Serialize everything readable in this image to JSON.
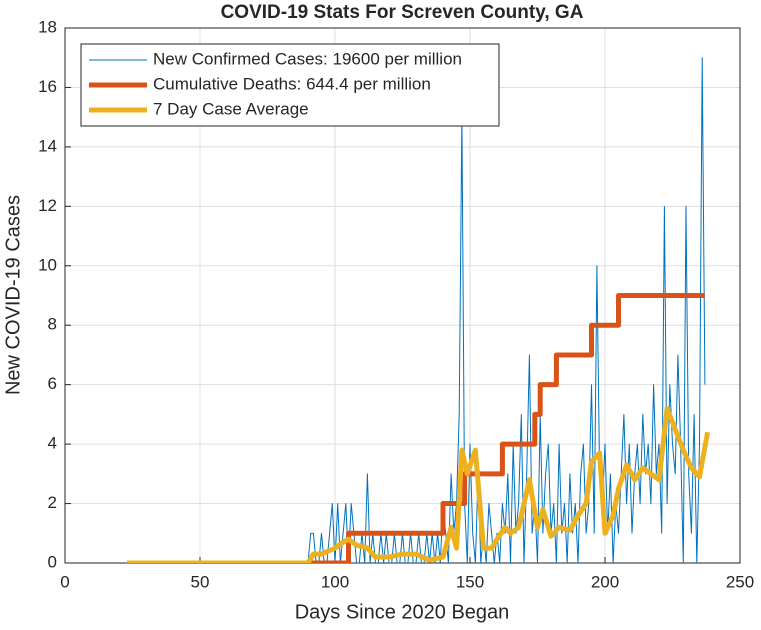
{
  "chart_data": {
    "type": "line",
    "title": "COVID-19 Stats For Screven County, GA",
    "x_label": "Days Since 2020 Began",
    "y_label": "New COVID-19 Cases",
    "xlim": [
      0,
      250
    ],
    "xticks": [
      0,
      50,
      100,
      150,
      200,
      250
    ],
    "ylim": [
      0,
      18
    ],
    "yticks": [
      0,
      2,
      4,
      6,
      8,
      10,
      12,
      14,
      16,
      18
    ],
    "grid": true,
    "legend": "upper left",
    "series": [
      {
        "name": "New Confirmed Cases: 19600 per million",
        "color": "#0072bd",
        "width": 1,
        "x": [
          23,
          90,
          91,
          92,
          93,
          94,
          95,
          96,
          97,
          98,
          99,
          100,
          101,
          102,
          103,
          104,
          105,
          106,
          107,
          108,
          109,
          110,
          111,
          112,
          113,
          114,
          115,
          116,
          117,
          118,
          119,
          120,
          121,
          122,
          123,
          124,
          125,
          126,
          127,
          128,
          129,
          130,
          131,
          132,
          133,
          134,
          135,
          136,
          137,
          138,
          139,
          140,
          141,
          142,
          143,
          144,
          145,
          146,
          147,
          148,
          149,
          150,
          151,
          152,
          153,
          154,
          155,
          156,
          157,
          158,
          159,
          160,
          161,
          162,
          163,
          164,
          165,
          166,
          167,
          168,
          169,
          170,
          171,
          172,
          173,
          174,
          175,
          176,
          177,
          178,
          179,
          180,
          181,
          182,
          183,
          184,
          185,
          186,
          187,
          188,
          189,
          190,
          191,
          192,
          193,
          194,
          195,
          196,
          197,
          198,
          199,
          200,
          201,
          202,
          203,
          204,
          205,
          206,
          207,
          208,
          209,
          210,
          211,
          212,
          213,
          214,
          215,
          216,
          217,
          218,
          219,
          220,
          221,
          222,
          223,
          224,
          225,
          226,
          227,
          228,
          229,
          230,
          231,
          232,
          233,
          234,
          235,
          236,
          237
        ],
        "values": [
          0,
          0,
          1,
          1,
          0,
          0,
          1,
          0,
          0,
          1,
          2,
          0,
          2,
          0,
          1,
          2,
          0,
          2,
          1,
          0,
          0,
          1,
          0,
          3,
          0,
          1,
          0,
          0,
          1,
          0,
          1,
          0,
          0,
          1,
          0,
          0,
          1,
          0,
          0,
          1,
          0,
          0,
          1,
          0,
          0,
          1,
          0,
          1,
          0,
          1,
          0,
          2,
          1,
          0,
          3,
          1,
          2,
          5,
          15,
          2,
          0,
          4,
          1,
          0,
          3,
          0,
          1,
          0,
          2,
          1,
          0,
          1,
          0,
          2,
          1,
          3,
          0,
          4,
          1,
          2,
          5,
          0,
          3,
          7,
          1,
          2,
          0,
          5,
          1,
          3,
          4,
          1,
          2,
          0,
          4,
          1,
          2,
          0,
          3,
          1,
          2,
          0,
          3,
          4,
          1,
          2,
          6,
          1,
          10,
          3,
          2,
          4,
          1,
          3,
          0,
          2,
          1,
          3,
          5,
          2,
          4,
          1,
          3,
          4,
          2,
          5,
          3,
          4,
          2,
          6,
          3,
          4,
          1,
          12,
          2,
          6,
          4,
          3,
          7,
          4,
          0,
          12,
          3,
          1,
          5,
          0,
          4,
          17,
          6
        ]
      },
      {
        "name": "Cumulative Deaths: 644.4 per million",
        "color": "#d95319",
        "width": 5,
        "x": [
          23,
          105,
          105,
          140,
          140,
          148,
          148,
          162,
          162,
          174,
          174,
          176,
          176,
          182,
          182,
          195,
          195,
          205,
          205,
          237
        ],
        "values": [
          0,
          0,
          1,
          1,
          2,
          2,
          3,
          3,
          4,
          4,
          5,
          5,
          6,
          6,
          7,
          7,
          8,
          8,
          9,
          9
        ]
      },
      {
        "name": "7 Day Case Average",
        "color": "#edb120",
        "width": 5,
        "x": [
          23,
          90,
          92,
          95,
          100,
          103,
          105,
          108,
          112,
          115,
          120,
          125,
          130,
          135,
          140,
          143,
          145,
          147,
          149,
          152,
          155,
          158,
          160,
          163,
          165,
          168,
          172,
          175,
          177,
          180,
          183,
          187,
          190,
          193,
          195,
          198,
          200,
          203,
          205,
          208,
          211,
          214,
          217,
          220,
          223,
          226,
          229,
          232,
          235,
          238
        ],
        "values": [
          0,
          0,
          0.3,
          0.3,
          0.5,
          0.7,
          0.8,
          0.6,
          0.5,
          0.2,
          0.2,
          0.3,
          0.3,
          0.1,
          0.2,
          1.2,
          0.5,
          3.8,
          3,
          3.8,
          0.5,
          0.5,
          0.8,
          1.2,
          1.0,
          1.2,
          2.8,
          1.2,
          1.8,
          0.9,
          1.2,
          1.1,
          1.6,
          2.0,
          3.4,
          3.7,
          1.0,
          1.6,
          2.5,
          3.3,
          2.8,
          3.2,
          3.0,
          2.8,
          5.2,
          4.5,
          3.8,
          3.2,
          2.9,
          4.4
        ]
      }
    ]
  }
}
